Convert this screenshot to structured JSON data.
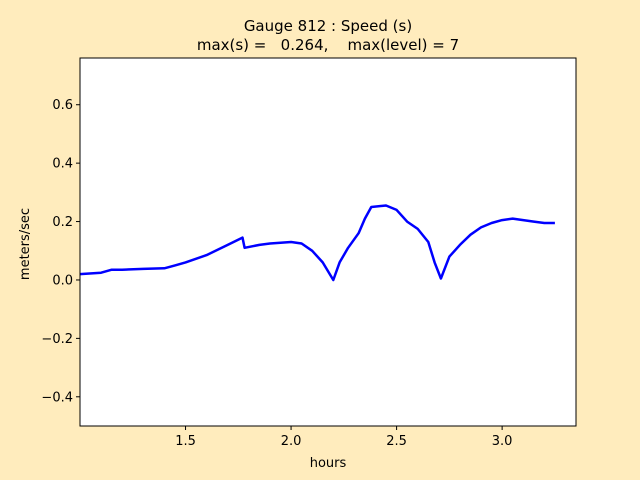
{
  "colors": {
    "figure_background": "#ffecbd",
    "plot_background": "#ffffff",
    "series": "#0000ff",
    "axes": "#000000"
  },
  "chart_data": {
    "type": "line",
    "title": "Gauge 812 : Speed (s)",
    "subtitle": "max(s) =   0.264,    max(level) = 7",
    "xlabel": "hours",
    "ylabel": "meters/sec",
    "xlim": [
      1.0,
      3.35
    ],
    "ylim": [
      -0.5,
      0.76
    ],
    "grid": false,
    "legend": "none",
    "x_ticks": [
      1.5,
      2.0,
      2.5,
      3.0
    ],
    "x_tick_labels": [
      "1.5",
      "2.0",
      "2.5",
      "3.0"
    ],
    "y_ticks": [
      -0.4,
      -0.2,
      0.0,
      0.2,
      0.4,
      0.6
    ],
    "y_tick_labels": [
      "−0.4",
      "−0.2",
      "0.0",
      "0.2",
      "0.4",
      "0.6"
    ],
    "series": [
      {
        "color": "#0000ff",
        "x": [
          1.0,
          1.1,
          1.15,
          1.2,
          1.3,
          1.4,
          1.45,
          1.5,
          1.6,
          1.7,
          1.77,
          1.78,
          1.85,
          1.9,
          2.0,
          2.05,
          2.1,
          2.15,
          2.2,
          2.23,
          2.27,
          2.32,
          2.35,
          2.38,
          2.45,
          2.5,
          2.55,
          2.6,
          2.65,
          2.68,
          2.71,
          2.75,
          2.8,
          2.85,
          2.9,
          2.95,
          3.0,
          3.05,
          3.1,
          3.15,
          3.2,
          3.25
        ],
        "y": [
          0.02,
          0.025,
          0.035,
          0.035,
          0.038,
          0.04,
          0.05,
          0.06,
          0.085,
          0.12,
          0.145,
          0.11,
          0.12,
          0.125,
          0.13,
          0.125,
          0.1,
          0.06,
          0.0,
          0.06,
          0.11,
          0.16,
          0.21,
          0.25,
          0.255,
          0.24,
          0.2,
          0.175,
          0.13,
          0.06,
          0.005,
          0.08,
          0.12,
          0.155,
          0.18,
          0.195,
          0.205,
          0.21,
          0.205,
          0.2,
          0.195,
          0.195
        ]
      }
    ]
  }
}
